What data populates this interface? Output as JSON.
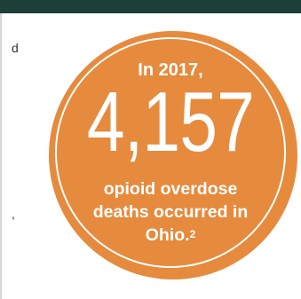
{
  "header_bar_color": "#1c3f38",
  "badge": {
    "color": "#e68a3d",
    "intro": "In 2017,",
    "number": "4,157",
    "caption_line1": "opioid overdose",
    "caption_line2": "deaths occurred in",
    "caption_line3": "Ohio.",
    "footnote_mark": "2"
  },
  "left_text_fragments": [
    "d",
    ","
  ]
}
